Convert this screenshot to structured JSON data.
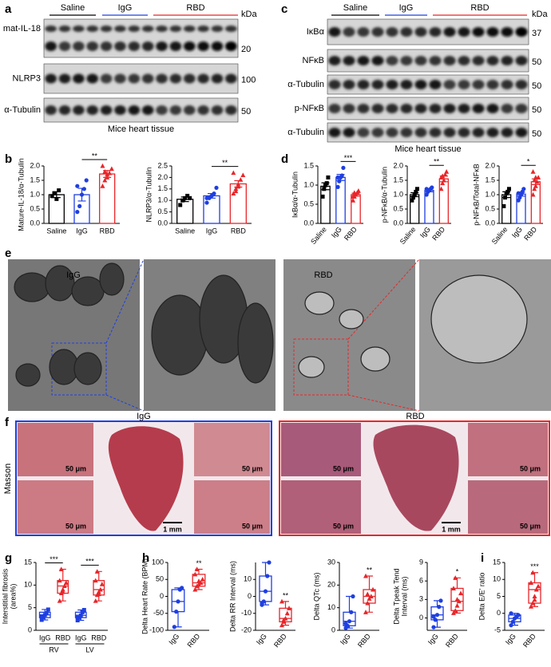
{
  "panel_labels": [
    "a",
    "b",
    "c",
    "d",
    "e",
    "f",
    "g",
    "h",
    "i"
  ],
  "blots_a": {
    "groups": [
      "Saline",
      "IgG",
      "RBD"
    ],
    "unit": "kDa",
    "rows": [
      {
        "label": "mat-IL-18",
        "kda": 20
      },
      {
        "label": "NLRP3",
        "kda": 100
      },
      {
        "label": "α-Tubulin",
        "kda": 50
      }
    ],
    "caption": "Mice heart tissue"
  },
  "blots_c": {
    "groups": [
      "Saline",
      "IgG",
      "RBD"
    ],
    "unit": "kDa",
    "rows": [
      {
        "label": "IκBα",
        "kda": 37
      },
      {
        "label": "NFκB",
        "kda": 50
      },
      {
        "label": "α-Tubulin",
        "kda": 50
      },
      {
        "label": "p-NFκB",
        "kda": 50
      },
      {
        "label": "α-Tubulin",
        "kda": 50
      }
    ],
    "caption": "Mice heart tissue"
  },
  "em": {
    "labels": [
      "IgG",
      "RBD"
    ]
  },
  "masson": {
    "stain": "Masson",
    "labels": [
      "IgG",
      "RBD"
    ],
    "scale_small": "50 μm",
    "scale_large": "1 mm"
  },
  "chart_data": [
    {
      "type": "bar",
      "ylabel": [
        "Mature-IL-18/α-Tubulin"
      ],
      "categories": [
        "Saline",
        "IgG",
        "RBD"
      ],
      "colors": [
        "#000000",
        "#1f3fe0",
        "#e8262a"
      ],
      "markers": [
        "square",
        "circle",
        "triangle"
      ],
      "values": [
        1.0,
        1.0,
        1.72
      ],
      "errors": [
        0.1,
        0.22,
        0.12
      ],
      "points": [
        [
          0.95,
          1.05,
          0.85,
          1.15
        ],
        [
          0.4,
          0.6,
          1.0,
          1.2,
          1.5,
          1.3
        ],
        [
          1.3,
          1.5,
          1.6,
          1.75,
          1.9,
          2.0,
          1.8,
          1.7
        ]
      ],
      "ylim": [
        0,
        2.0
      ],
      "yticks": [
        {
          "value": 0,
          "label": "0.0"
        },
        0.5,
        {
          "value": 1,
          "label": "1.0"
        },
        1.5,
        {
          "value": 2,
          "label": "2.0"
        }
      ],
      "annotations": [
        "**"
      ]
    },
    {
      "type": "bar",
      "ylabel": [
        "NLRP3/α-Tubulin"
      ],
      "categories": [
        "Saline",
        "IgG",
        "RBD"
      ],
      "colors": [
        "#000000",
        "#1f3fe0",
        "#e8262a"
      ],
      "markers": [
        "square",
        "circle",
        "triangle"
      ],
      "values": [
        1.05,
        1.2,
        1.72
      ],
      "errors": [
        0.1,
        0.1,
        0.14
      ],
      "points": [
        [
          0.8,
          1.0,
          1.1,
          1.2,
          1.1
        ],
        [
          0.9,
          1.1,
          1.2,
          1.3,
          1.55,
          1.1
        ],
        [
          1.3,
          1.5,
          1.7,
          1.9,
          2.1,
          2.2,
          1.4,
          1.6
        ]
      ],
      "ylim": [
        0,
        2.5
      ],
      "yticks": [
        {
          "value": 0,
          "label": "0.0"
        },
        0.5,
        {
          "value": 1,
          "label": "1.0"
        },
        1.5,
        {
          "value": 2,
          "label": "2.0"
        },
        2.5
      ],
      "annotations": [
        "**"
      ]
    },
    {
      "type": "bar",
      "ylabel": [
        "IκBα/α-Tubulin"
      ],
      "categories": [
        "Saline",
        "IgG",
        "RBD"
      ],
      "colors": [
        "#000000",
        "#1f3fe0",
        "#e8262a"
      ],
      "markers": [
        "square",
        "circle",
        "triangle"
      ],
      "values": [
        0.97,
        1.2,
        0.75
      ],
      "errors": [
        0.09,
        0.08,
        0.04
      ],
      "points": [
        [
          0.7,
          0.9,
          1.0,
          1.05,
          1.2
        ],
        [
          0.95,
          1.1,
          1.2,
          1.25,
          1.45,
          1.2
        ],
        [
          0.6,
          0.7,
          0.75,
          0.8,
          0.85,
          0.7,
          0.8
        ]
      ],
      "ylim": [
        0,
        1.5
      ],
      "yticks": [
        {
          "value": 0,
          "label": "0.0"
        },
        0.5,
        {
          "value": 1,
          "label": "1.0"
        },
        1.5
      ],
      "annotations": [
        "***"
      ]
    },
    {
      "type": "bar",
      "ylabel": [
        "p-NFκB/α-Tubulin"
      ],
      "categories": [
        "Saline",
        "IgG",
        "RBD"
      ],
      "colors": [
        "#000000",
        "#1f3fe0",
        "#e8262a"
      ],
      "markers": [
        "square",
        "circle",
        "triangle"
      ],
      "values": [
        1.0,
        1.15,
        1.55
      ],
      "errors": [
        0.07,
        0.05,
        0.1
      ],
      "points": [
        [
          0.8,
          0.9,
          1.0,
          1.1,
          1.2
        ],
        [
          1.0,
          1.1,
          1.15,
          1.2,
          1.25,
          1.2
        ],
        [
          1.2,
          1.4,
          1.5,
          1.7,
          1.8,
          1.6,
          1.65
        ]
      ],
      "ylim": [
        0,
        2.0
      ],
      "yticks": [
        {
          "value": 0,
          "label": "0.0"
        },
        0.5,
        {
          "value": 1,
          "label": "1.0"
        },
        1.5,
        {
          "value": 2,
          "label": "2.0"
        }
      ],
      "annotations": [
        "**"
      ]
    },
    {
      "type": "bar",
      "ylabel": [
        "p-NFκB/Total-NFκB"
      ],
      "categories": [
        "Saline",
        "IgG",
        "RBD"
      ],
      "colors": [
        "#000000",
        "#1f3fe0",
        "#e8262a"
      ],
      "markers": [
        "square",
        "circle",
        "triangle"
      ],
      "values": [
        1.0,
        1.02,
        1.45
      ],
      "errors": [
        0.1,
        0.07,
        0.1
      ],
      "points": [
        [
          0.6,
          0.9,
          1.05,
          1.1,
          1.2
        ],
        [
          0.8,
          0.9,
          1.0,
          1.1,
          1.2,
          1.05
        ],
        [
          1.0,
          1.2,
          1.3,
          1.45,
          1.6,
          1.8,
          1.5,
          1.6
        ]
      ],
      "ylim": [
        0,
        2.0
      ],
      "yticks": [
        {
          "value": 0,
          "label": "0.0"
        },
        0.5,
        {
          "value": 1,
          "label": "1.0"
        },
        1.5,
        {
          "value": 2,
          "label": "2.0"
        }
      ],
      "annotations": [
        "*"
      ]
    },
    {
      "type": "box",
      "ylabel": [
        "Interstitial fibrosis",
        "(area%)"
      ],
      "categories": [
        "IgG",
        "RBD",
        "IgG",
        "RBD"
      ],
      "groups": [
        "RV",
        "LV"
      ],
      "colors": [
        "#1f3fe0",
        "#e8262a",
        "#1f3fe0",
        "#e8262a"
      ],
      "markers": [
        "square",
        "triangle",
        "square",
        "triangle"
      ],
      "boxes": [
        {
          "min": 2.3,
          "q1": 2.8,
          "median": 3.4,
          "q3": 4.0,
          "max": 4.6
        },
        {
          "min": 6.5,
          "q1": 8.2,
          "median": 9.8,
          "q3": 11.0,
          "max": 13.5
        },
        {
          "min": 2.2,
          "q1": 2.8,
          "median": 3.3,
          "q3": 4.0,
          "max": 4.5
        },
        {
          "min": 6.5,
          "q1": 7.8,
          "median": 9.0,
          "q3": 11.0,
          "max": 13.0
        }
      ],
      "points": [
        [
          2.3,
          2.9,
          3.4,
          3.8,
          4.6,
          3.1
        ],
        [
          6.5,
          8.2,
          9.0,
          9.8,
          10.5,
          11.0,
          13.5,
          8.5
        ],
        [
          2.2,
          2.8,
          3.3,
          4.0,
          4.5,
          3.0
        ],
        [
          6.5,
          7.8,
          8.5,
          9.0,
          10.2,
          11.0,
          13.0,
          8.0
        ]
      ],
      "ylim": [
        0,
        15
      ],
      "yticks": [
        0,
        5,
        10,
        15
      ],
      "annotations": [
        "***",
        "***"
      ]
    },
    {
      "type": "box",
      "ylabel": [
        "Delta Heart Rate (BPM)"
      ],
      "categories": [
        "IgG",
        "RBD"
      ],
      "colors": [
        "#1f3fe0",
        "#e8262a"
      ],
      "markers": [
        "circle",
        "triangle"
      ],
      "boxes": [
        {
          "min": -90,
          "q1": -45,
          "median": -15,
          "q3": 20,
          "max": 25
        },
        {
          "min": 20,
          "q1": 30,
          "median": 40,
          "q3": 65,
          "max": 80
        }
      ],
      "points": [
        [
          -90,
          -45,
          -15,
          20,
          25
        ],
        [
          20,
          30,
          35,
          40,
          50,
          65,
          80,
          45
        ]
      ],
      "ylim": [
        -100,
        100
      ],
      "yticks": [
        -100,
        -50,
        0,
        50,
        100
      ],
      "annotations": [
        "**"
      ]
    },
    {
      "type": "box",
      "ylabel": [
        "Delta RR Interval (ms)"
      ],
      "categories": [
        "IgG",
        "RBD"
      ],
      "colors": [
        "#1f3fe0",
        "#e8262a"
      ],
      "markers": [
        "circle",
        "triangle"
      ],
      "boxes": [
        {
          "min": -5,
          "q1": -3,
          "median": 3,
          "q3": 12,
          "max": 20
        },
        {
          "min": -17,
          "q1": -15,
          "median": -13,
          "q3": -7,
          "max": -3
        }
      ],
      "points": [
        [
          -5,
          -3,
          3,
          12,
          20,
          -4
        ],
        [
          -17,
          -15,
          -13,
          -10,
          -7,
          -3,
          -14
        ]
      ],
      "ylim": [
        -20,
        20
      ],
      "yticks": [
        -20,
        -10,
        0,
        10
      ],
      "annotations": [
        "**"
      ]
    },
    {
      "type": "box",
      "ylabel": [
        "Delta QTc (ms)"
      ],
      "categories": [
        "IgG",
        "RBD"
      ],
      "colors": [
        "#1f3fe0",
        "#e8262a"
      ],
      "markers": [
        "circle",
        "triangle"
      ],
      "boxes": [
        {
          "min": 1,
          "q1": 2,
          "median": 4,
          "q3": 8,
          "max": 15
        },
        {
          "min": 8,
          "q1": 12,
          "median": 15,
          "q3": 18,
          "max": 24
        }
      ],
      "points": [
        [
          1,
          2,
          4,
          8,
          15,
          3
        ],
        [
          8,
          12,
          14,
          15,
          18,
          24,
          16
        ]
      ],
      "ylim": [
        0,
        30
      ],
      "yticks": [
        0,
        10,
        20,
        30
      ],
      "annotations": [
        "**"
      ]
    },
    {
      "type": "box",
      "ylabel": [
        "Delta Tpeak Tend",
        "Interval (ms)"
      ],
      "categories": [
        "IgG",
        "RBD"
      ],
      "colors": [
        "#1f3fe0",
        "#e8262a"
      ],
      "markers": [
        "circle",
        "triangle"
      ],
      "boxes": [
        {
          "min": -1.5,
          "q1": -0.3,
          "median": 0.5,
          "q3": 1.8,
          "max": 2.8
        },
        {
          "min": 0.8,
          "q1": 1.2,
          "median": 2.7,
          "q3": 4.8,
          "max": 6.5
        }
      ],
      "points": [
        [
          -1.5,
          -0.3,
          0.5,
          1.8,
          2.8,
          0.2
        ],
        [
          0.8,
          1.2,
          2.0,
          2.7,
          4.0,
          4.8,
          6.5,
          3.0
        ]
      ],
      "ylim": [
        -2,
        9
      ],
      "yticks": [
        0,
        3,
        6,
        9
      ],
      "annotations": [
        "*"
      ]
    },
    {
      "type": "box",
      "ylabel": [
        "Delta E/E' ratio"
      ],
      "categories": [
        "IgG",
        "RBD"
      ],
      "colors": [
        "#1f3fe0",
        "#e8262a"
      ],
      "markers": [
        "circle",
        "triangle"
      ],
      "boxes": [
        {
          "min": -3.5,
          "q1": -2.5,
          "median": -1.5,
          "q3": -0.5,
          "max": 0
        },
        {
          "min": 2,
          "q1": 3,
          "median": 7,
          "q3": 9,
          "max": 12
        }
      ],
      "points": [
        [
          -3.5,
          -2.5,
          -1.5,
          -1.0,
          -0.5,
          0
        ],
        [
          2,
          3,
          5,
          7,
          8,
          9,
          12,
          4
        ]
      ],
      "ylim": [
        -5,
        15
      ],
      "yticks": [
        -5,
        0,
        5,
        10,
        15
      ],
      "annotations": [
        "***"
      ]
    }
  ]
}
